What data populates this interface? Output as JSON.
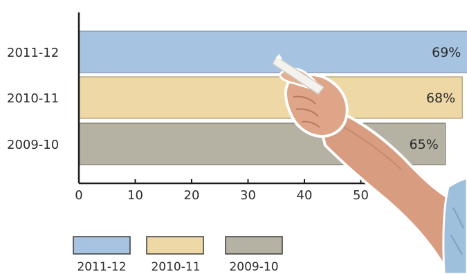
{
  "chart_data": {
    "type": "bar",
    "orientation": "horizontal",
    "categories": [
      "2011-12",
      "2010-11",
      "2009-10"
    ],
    "values": [
      69,
      68,
      65
    ],
    "value_labels": [
      "69%",
      "68%",
      "65%"
    ],
    "colors": [
      "#a6c4e2",
      "#eed8a6",
      "#b5b1a3"
    ],
    "border_colors": [
      "#8297ad",
      "#a99a72",
      "#7f7c71"
    ],
    "xlim": [
      0,
      70
    ],
    "xticks": [
      0,
      10,
      20,
      30,
      40,
      50
    ],
    "xtick_labels": [
      "0",
      "10",
      "20",
      "30",
      "40",
      "50"
    ],
    "legend": {
      "placement": "bottom",
      "entries": [
        "2011-12",
        "2010-11",
        "2009-10"
      ]
    },
    "grid": false,
    "title": "",
    "xlabel": "",
    "ylabel": ""
  },
  "decoration": {
    "foreground_image": "hand-holding-chalk"
  }
}
